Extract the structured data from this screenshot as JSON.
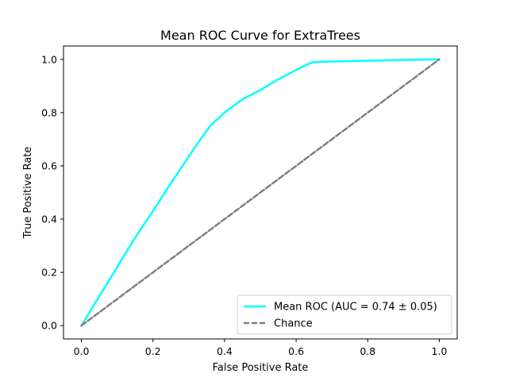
{
  "chart_data": {
    "type": "line",
    "title": "Mean ROC Curve for ExtraTrees",
    "xlabel": "False Positive Rate",
    "ylabel": "True Positive Rate",
    "xlim": [
      -0.05,
      1.05
    ],
    "ylim": [
      -0.05,
      1.05
    ],
    "xticks": [
      0.0,
      0.2,
      0.4,
      0.6,
      0.8,
      1.0
    ],
    "xtick_labels": [
      "0.0",
      "0.2",
      "0.4",
      "0.6",
      "0.8",
      "1.0"
    ],
    "yticks": [
      0.0,
      0.2,
      0.4,
      0.6,
      0.8,
      1.0
    ],
    "ytick_labels": [
      "0.0",
      "0.2",
      "0.4",
      "0.6",
      "0.8",
      "1.0"
    ],
    "grid": false,
    "legend_position": "lower-right",
    "series": [
      {
        "name": "Mean ROC (AUC = 0.74 ± 0.05)",
        "color": "#00ffff",
        "dash": "solid",
        "x": [
          0.0,
          0.05,
          0.1,
          0.12,
          0.15,
          0.2,
          0.25,
          0.3,
          0.33,
          0.36,
          0.4,
          0.45,
          0.5,
          0.55,
          0.6,
          0.63,
          0.65,
          0.7,
          0.8,
          0.9,
          1.0
        ],
        "y": [
          0.0,
          0.11,
          0.22,
          0.265,
          0.33,
          0.43,
          0.535,
          0.635,
          0.695,
          0.75,
          0.8,
          0.85,
          0.885,
          0.925,
          0.96,
          0.98,
          0.99,
          0.992,
          0.995,
          0.998,
          1.0
        ]
      },
      {
        "name": "Chance",
        "color": "#808080",
        "dash": "dashed",
        "x": [
          0.0,
          1.0
        ],
        "y": [
          0.0,
          1.0
        ]
      }
    ]
  }
}
